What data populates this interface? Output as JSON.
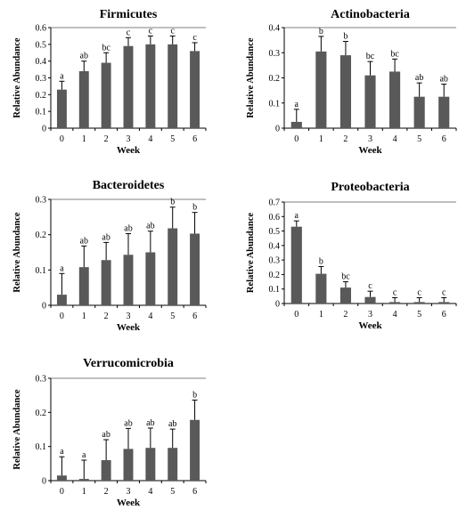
{
  "chart_data": [
    {
      "type": "bar",
      "title": "Firmicutes",
      "xlabel": "Week",
      "ylabel": "Relative Abundance",
      "categories": [
        "0",
        "1",
        "2",
        "3",
        "4",
        "5",
        "6"
      ],
      "values": [
        0.23,
        0.34,
        0.39,
        0.49,
        0.5,
        0.5,
        0.46
      ],
      "errors": [
        0.05,
        0.06,
        0.06,
        0.05,
        0.05,
        0.05,
        0.05
      ],
      "significance": [
        "a",
        "ab",
        "bc",
        "c",
        "c",
        "c",
        "c"
      ],
      "ylim": [
        0,
        0.6
      ],
      "yticks": [
        0,
        0.1,
        0.2,
        0.3,
        0.4,
        0.5,
        0.6
      ],
      "ytick_labels": [
        "0",
        "0.1",
        "0.2",
        "0.3",
        "0.4",
        "0.5",
        "0.6"
      ],
      "bar_color": "#595959",
      "grid": false
    },
    {
      "type": "bar",
      "title": "Actinobacteria",
      "xlabel": "Week",
      "ylabel": "Relative Abundance",
      "categories": [
        "0",
        "1",
        "2",
        "3",
        "4",
        "5",
        "6"
      ],
      "values": [
        0.025,
        0.305,
        0.29,
        0.21,
        0.225,
        0.125,
        0.125
      ],
      "errors": [
        0.05,
        0.06,
        0.055,
        0.055,
        0.05,
        0.055,
        0.05
      ],
      "significance": [
        "a",
        "b",
        "b",
        "bc",
        "bc",
        "ab",
        "ab"
      ],
      "ylim": [
        0,
        0.4
      ],
      "yticks": [
        0,
        0.1,
        0.2,
        0.3,
        0.4
      ],
      "ytick_labels": [
        "0",
        "0.1",
        "0.2",
        "0.3",
        "0.4"
      ],
      "bar_color": "#595959",
      "grid": false
    },
    {
      "type": "bar",
      "title": "Bacteroidetes",
      "xlabel": "Week",
      "ylabel": "Relative Abundance",
      "categories": [
        "0",
        "1",
        "2",
        "3",
        "4",
        "5",
        "6"
      ],
      "values": [
        0.03,
        0.108,
        0.128,
        0.143,
        0.15,
        0.218,
        0.203
      ],
      "errors": [
        0.06,
        0.06,
        0.05,
        0.06,
        0.06,
        0.06,
        0.06
      ],
      "significance": [
        "a",
        "ab",
        "ab",
        "ab",
        "ab",
        "b",
        "b"
      ],
      "ylim": [
        0,
        0.3
      ],
      "yticks": [
        0,
        0.1,
        0.2,
        0.3
      ],
      "ytick_labels": [
        "0",
        "0.1",
        "0.2",
        "0.3"
      ],
      "bar_color": "#595959",
      "grid": false
    },
    {
      "type": "bar",
      "title": "Proteobacteria",
      "xlabel": "Week",
      "ylabel": "Relative Abundance",
      "categories": [
        "0",
        "1",
        "2",
        "3",
        "4",
        "5",
        "6"
      ],
      "values": [
        0.53,
        0.205,
        0.11,
        0.045,
        0.01,
        0.01,
        0.01
      ],
      "errors": [
        0.04,
        0.05,
        0.04,
        0.04,
        0.03,
        0.03,
        0.03
      ],
      "significance": [
        "a",
        "b",
        "bc",
        "c",
        "c",
        "c",
        "c"
      ],
      "ylim": [
        0,
        0.7
      ],
      "yticks": [
        0,
        0.1,
        0.2,
        0.3,
        0.4,
        0.5,
        0.6,
        0.7
      ],
      "ytick_labels": [
        "0",
        "0.1",
        "0.2",
        "0.3",
        "0.4",
        "0.5",
        "0.6",
        "0.7"
      ],
      "bar_color": "#595959",
      "grid": false
    },
    {
      "type": "bar",
      "title": "Verrucomicrobia",
      "xlabel": "Week",
      "ylabel": "Relative Abundance",
      "categories": [
        "0",
        "1",
        "2",
        "3",
        "4",
        "5",
        "6"
      ],
      "values": [
        0.015,
        0.005,
        0.06,
        0.093,
        0.096,
        0.096,
        0.178
      ],
      "errors": [
        0.055,
        0.055,
        0.06,
        0.06,
        0.058,
        0.055,
        0.058
      ],
      "significance": [
        "a",
        "a",
        "ab",
        "ab",
        "ab",
        "ab",
        "b"
      ],
      "ylim": [
        0,
        0.3
      ],
      "yticks": [
        0,
        0.1,
        0.2,
        0.3
      ],
      "ytick_labels": [
        "0",
        "0.1",
        "0.2",
        "0.3"
      ],
      "bar_color": "#595959",
      "grid": false
    }
  ]
}
